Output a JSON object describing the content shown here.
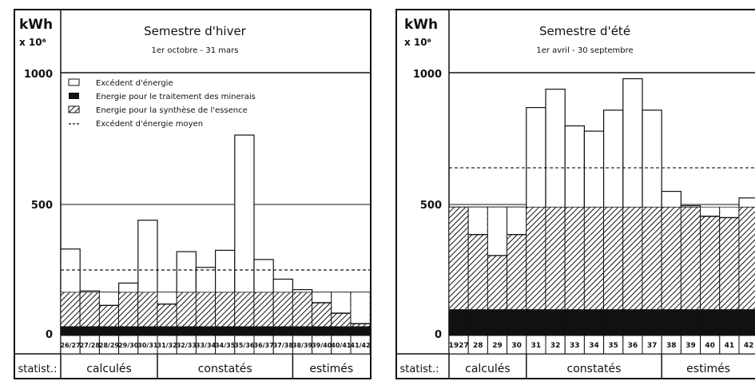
{
  "colors": {
    "ink": "#111111",
    "paper": "#ffffff"
  },
  "chart_data": [
    {
      "type": "bar",
      "title": "Semestre d'hiver",
      "subtitle": "1er octobre - 31 mars",
      "ylabel_unit": "kWh",
      "ylabel_scale": "x 10⁶",
      "ylim": [
        0,
        1000
      ],
      "yticks": [
        "0",
        "500",
        "1000"
      ],
      "grid": true,
      "legend_position": "top-left",
      "legend": [
        {
          "key": "surplus",
          "label": "Excédent d'énergie"
        },
        {
          "key": "minerals",
          "label": "Energie pour le traitement des minerais"
        },
        {
          "key": "synthesis",
          "label": "Energie pour la synthèse de l'essence"
        },
        {
          "key": "mean",
          "label": "Excédent d'énergie moyen"
        }
      ],
      "categories": [
        "26/27",
        "27/28",
        "28/29",
        "29/30",
        "30/31",
        "31/32",
        "32/33",
        "33/34",
        "34/35",
        "35/36",
        "36/37",
        "37/38",
        "38/39",
        "39/40",
        "40/41",
        "41/42"
      ],
      "series": [
        {
          "name": "Excédent d'énergie",
          "key": "surplus",
          "values": [
            330,
            170,
            165,
            200,
            440,
            165,
            320,
            260,
            325,
            765,
            290,
            215,
            175,
            165,
            165,
            165
          ]
        },
        {
          "name": "Energie pour le traitement des minerais",
          "key": "minerals",
          "values": [
            35,
            35,
            35,
            35,
            35,
            35,
            35,
            35,
            35,
            35,
            35,
            35,
            35,
            35,
            35,
            35
          ]
        },
        {
          "name": "Energie pour la synthèse de l'essence",
          "key": "synthesis",
          "values": [
            165,
            165,
            165,
            165,
            165,
            165,
            165,
            165,
            165,
            165,
            165,
            165,
            165,
            165,
            165,
            165
          ]
        }
      ],
      "unhatched_top": [
        null,
        null,
        115,
        null,
        null,
        120,
        null,
        null,
        null,
        null,
        null,
        null,
        null,
        125,
        85,
        45
      ],
      "mean_line": 250,
      "footer": {
        "label": "statist.:",
        "groups": [
          {
            "label": "calculés",
            "from": 0,
            "to": 5
          },
          {
            "label": "constatés",
            "from": 5,
            "to": 12
          },
          {
            "label": "estimés",
            "from": 12,
            "to": 16
          }
        ]
      }
    },
    {
      "type": "bar",
      "title": "Semestre d'été",
      "subtitle": "1er avril - 30 septembre",
      "ylabel_unit": "kWh",
      "ylabel_scale": "x 10⁶",
      "ylim": [
        0,
        1000
      ],
      "yticks": [
        "0",
        "500",
        "1000"
      ],
      "grid": true,
      "categories": [
        "1927",
        "28",
        "29",
        "30",
        "31",
        "32",
        "33",
        "34",
        "35",
        "36",
        "37",
        "38",
        "39",
        "40",
        "41",
        "42"
      ],
      "series": [
        {
          "name": "Excédent d'énergie",
          "key": "surplus",
          "values": [
            490,
            490,
            490,
            490,
            870,
            940,
            800,
            780,
            860,
            980,
            860,
            550,
            495,
            485,
            485,
            525
          ]
        },
        {
          "name": "Energie pour le traitement des minerais",
          "key": "minerals",
          "values": [
            100,
            100,
            100,
            100,
            100,
            100,
            100,
            100,
            100,
            100,
            100,
            100,
            100,
            100,
            100,
            100
          ]
        },
        {
          "name": "Energie pour la synthèse de l'essence",
          "key": "synthesis",
          "values": [
            490,
            490,
            490,
            490,
            490,
            490,
            490,
            490,
            490,
            490,
            490,
            490,
            490,
            490,
            490,
            490
          ]
        }
      ],
      "unhatched_top": [
        null,
        385,
        305,
        385,
        null,
        null,
        null,
        null,
        null,
        null,
        null,
        null,
        null,
        455,
        450,
        null
      ],
      "mean_line": 640,
      "footer": {
        "label": "statist.:",
        "groups": [
          {
            "label": "calculés",
            "from": 0,
            "to": 4
          },
          {
            "label": "constatés",
            "from": 4,
            "to": 11
          },
          {
            "label": "estimés",
            "from": 11,
            "to": 16
          }
        ]
      }
    }
  ]
}
